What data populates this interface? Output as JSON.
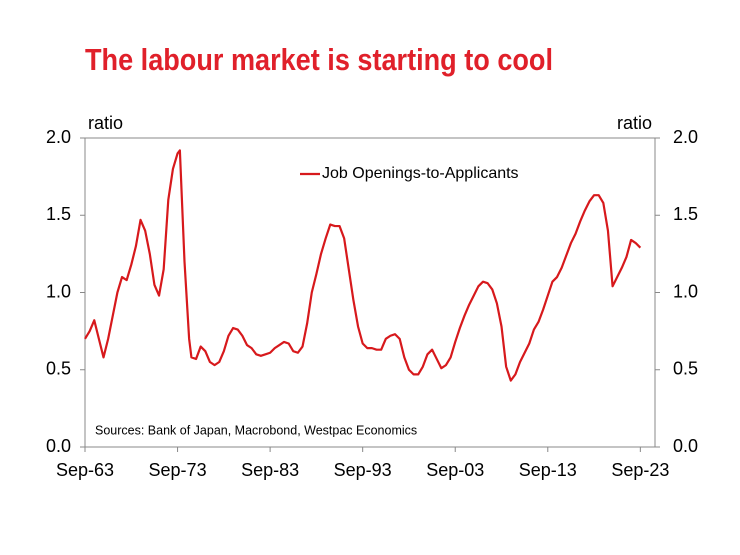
{
  "chart_data": {
    "type": "line",
    "title": "The labour market is starting to cool",
    "y_label": "ratio",
    "y2_label": "ratio",
    "annotation": "Sources: Bank of Japan, Macrobond, Westpac Economics",
    "x": [
      "Sep-63",
      "Mar-64",
      "Sep-64",
      "Mar-65",
      "Sep-65",
      "Mar-66",
      "Sep-66",
      "Mar-67",
      "Sep-67",
      "Mar-68",
      "Sep-68",
      "Mar-69",
      "Sep-69",
      "Mar-70",
      "Sep-70",
      "Mar-71",
      "Sep-71",
      "Mar-72",
      "Sep-72",
      "Mar-73",
      "Sep-73",
      "Dec-73",
      "Jun-74",
      "Dec-74",
      "Mar-75",
      "Sep-75",
      "Mar-76",
      "Sep-76",
      "Mar-77",
      "Sep-77",
      "Mar-78",
      "Sep-78",
      "Mar-79",
      "Sep-79",
      "Mar-80",
      "Sep-80",
      "Mar-81",
      "Sep-81",
      "Mar-82",
      "Sep-82",
      "Mar-83",
      "Sep-83",
      "Mar-84",
      "Sep-84",
      "Mar-85",
      "Sep-85",
      "Mar-86",
      "Sep-86",
      "Mar-87",
      "Sep-87",
      "Mar-88",
      "Sep-88",
      "Mar-89",
      "Sep-89",
      "Mar-90",
      "Sep-90",
      "Mar-91",
      "Sep-91",
      "Mar-92",
      "Sep-92",
      "Mar-93",
      "Sep-93",
      "Mar-94",
      "Sep-94",
      "Mar-95",
      "Sep-95",
      "Mar-96",
      "Sep-96",
      "Mar-97",
      "Sep-97",
      "Mar-98",
      "Sep-98",
      "Mar-99",
      "Sep-99",
      "Mar-00",
      "Sep-00",
      "Mar-01",
      "Sep-01",
      "Mar-02",
      "Sep-02",
      "Mar-03",
      "Sep-03",
      "Mar-04",
      "Sep-04",
      "Mar-05",
      "Sep-05",
      "Mar-06",
      "Sep-06",
      "Mar-07",
      "Sep-07",
      "Mar-08",
      "Sep-08",
      "Mar-09",
      "Sep-09",
      "Mar-10",
      "Sep-10",
      "Mar-11",
      "Sep-11",
      "Mar-12",
      "Sep-12",
      "Mar-13",
      "Sep-13",
      "Mar-14",
      "Sep-14",
      "Mar-15",
      "Sep-15",
      "Mar-16",
      "Sep-16",
      "Mar-17",
      "Sep-17",
      "Mar-18",
      "Sep-18",
      "Mar-19",
      "Sep-19",
      "Mar-20",
      "Sep-20",
      "Mar-21",
      "Sep-21",
      "Mar-22",
      "Sep-22",
      "Mar-23",
      "Sep-23"
    ],
    "series": [
      {
        "name": "Job Openings-to-Applicants",
        "color": "#d7191c",
        "values": [
          0.7,
          0.75,
          0.82,
          0.7,
          0.58,
          0.7,
          0.85,
          1.0,
          1.1,
          1.08,
          1.18,
          1.3,
          1.47,
          1.4,
          1.25,
          1.05,
          0.98,
          1.15,
          1.6,
          1.8,
          1.9,
          1.92,
          1.2,
          0.7,
          0.58,
          0.57,
          0.65,
          0.62,
          0.55,
          0.53,
          0.55,
          0.62,
          0.72,
          0.77,
          0.76,
          0.72,
          0.66,
          0.64,
          0.6,
          0.59,
          0.6,
          0.61,
          0.64,
          0.66,
          0.68,
          0.67,
          0.62,
          0.61,
          0.65,
          0.8,
          1.0,
          1.12,
          1.25,
          1.35,
          1.44,
          1.43,
          1.43,
          1.35,
          1.15,
          0.95,
          0.78,
          0.67,
          0.64,
          0.64,
          0.63,
          0.63,
          0.7,
          0.72,
          0.73,
          0.7,
          0.58,
          0.5,
          0.47,
          0.47,
          0.52,
          0.6,
          0.63,
          0.57,
          0.51,
          0.53,
          0.58,
          0.68,
          0.77,
          0.85,
          0.92,
          0.98,
          1.04,
          1.07,
          1.06,
          1.02,
          0.93,
          0.78,
          0.52,
          0.43,
          0.47,
          0.55,
          0.61,
          0.67,
          0.76,
          0.81,
          0.89,
          0.98,
          1.07,
          1.1,
          1.16,
          1.24,
          1.32,
          1.38,
          1.46,
          1.53,
          1.59,
          1.63,
          1.63,
          1.58,
          1.4,
          1.04,
          1.1,
          1.16,
          1.23,
          1.34,
          1.32,
          1.29
        ]
      }
    ],
    "xlim": [
      "Sep-63",
      "Apr-25"
    ],
    "xticks": [
      "Sep-63",
      "Sep-73",
      "Sep-83",
      "Sep-93",
      "Sep-03",
      "Sep-13",
      "Sep-23"
    ],
    "ylim": [
      0,
      2
    ],
    "yticks": [
      {
        "value": 0,
        "label": "0.0"
      },
      {
        "value": 0.5,
        "label": "0.5"
      },
      {
        "value": 1,
        "label": "1.0"
      },
      {
        "value": 1.5,
        "label": "1.5"
      },
      {
        "value": 2,
        "label": "2.0"
      }
    ],
    "y2lim": [
      0,
      2
    ],
    "y2ticks": [
      {
        "value": 0,
        "label": "0.0"
      },
      {
        "value": 0.5,
        "label": "0.5"
      },
      {
        "value": 1,
        "label": "1.0"
      },
      {
        "value": 1.5,
        "label": "1.5"
      },
      {
        "value": 2,
        "label": "2.0"
      }
    ],
    "grid": false,
    "legend": "top"
  }
}
